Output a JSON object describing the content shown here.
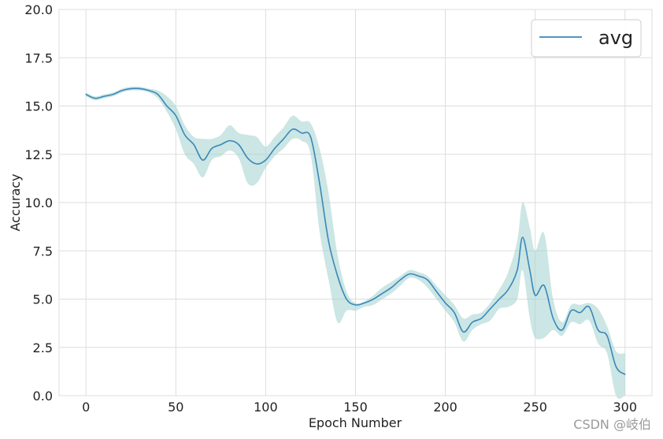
{
  "chart_data": {
    "type": "line",
    "xlabel": "Epoch Number",
    "ylabel": "Accuracy",
    "xlim": [
      -15,
      315
    ],
    "ylim": [
      0,
      20
    ],
    "xticks": [
      0,
      50,
      100,
      150,
      200,
      250,
      300
    ],
    "xtick_labels": [
      "0",
      "50",
      "100",
      "150",
      "200",
      "250",
      "300"
    ],
    "yticks": [
      0,
      2.5,
      5,
      7.5,
      10,
      12.5,
      15,
      17.5,
      20
    ],
    "ytick_labels": [
      "0.0",
      "2.5",
      "5.0",
      "7.5",
      "10.0",
      "12.5",
      "15.0",
      "17.5",
      "20.0"
    ],
    "grid": true,
    "legend_position": "top-right",
    "series": [
      {
        "name": "avg",
        "color": "#3a87b9",
        "band_color": "#a9d6d2",
        "x": [
          0,
          5,
          10,
          15,
          20,
          25,
          30,
          35,
          40,
          45,
          50,
          55,
          60,
          65,
          70,
          75,
          80,
          85,
          90,
          95,
          100,
          105,
          110,
          115,
          120,
          125,
          130,
          135,
          140,
          145,
          150,
          155,
          160,
          165,
          170,
          175,
          180,
          185,
          190,
          195,
          200,
          205,
          210,
          215,
          220,
          225,
          230,
          235,
          240,
          243,
          247,
          250,
          255,
          260,
          265,
          270,
          275,
          280,
          285,
          290,
          295,
          300
        ],
        "values": [
          15.6,
          15.4,
          15.5,
          15.6,
          15.8,
          15.9,
          15.9,
          15.8,
          15.6,
          15.0,
          14.5,
          13.5,
          13.0,
          12.2,
          12.8,
          13.0,
          13.2,
          13.0,
          12.3,
          12.0,
          12.2,
          12.8,
          13.3,
          13.8,
          13.6,
          13.4,
          11.0,
          8.0,
          6.2,
          5.0,
          4.7,
          4.8,
          5.0,
          5.3,
          5.6,
          6.0,
          6.3,
          6.2,
          6.0,
          5.4,
          4.8,
          4.3,
          3.3,
          3.8,
          4.0,
          4.5,
          5.0,
          5.5,
          6.5,
          8.2,
          6.5,
          5.2,
          5.7,
          4.0,
          3.4,
          4.4,
          4.3,
          4.6,
          3.4,
          3.1,
          1.5,
          1.1
        ],
        "lower": [
          15.5,
          15.3,
          15.4,
          15.5,
          15.7,
          15.8,
          15.8,
          15.7,
          15.4,
          14.7,
          13.8,
          12.5,
          12.0,
          11.3,
          12.2,
          12.4,
          12.7,
          12.3,
          11.0,
          11.0,
          11.8,
          12.4,
          12.8,
          13.3,
          13.2,
          12.5,
          8.5,
          6.0,
          3.8,
          4.4,
          4.4,
          4.6,
          4.7,
          5.0,
          5.3,
          5.7,
          6.1,
          6.0,
          5.6,
          5.0,
          4.4,
          3.8,
          2.8,
          3.4,
          3.7,
          3.9,
          4.5,
          4.6,
          5.0,
          6.5,
          4.0,
          3.0,
          3.0,
          3.4,
          3.1,
          3.8,
          3.7,
          3.9,
          2.7,
          2.2,
          0.0,
          0.0
        ],
        "upper": [
          15.7,
          15.5,
          15.6,
          15.7,
          15.9,
          16.0,
          16.0,
          15.9,
          15.8,
          15.5,
          15.0,
          14.0,
          13.4,
          13.3,
          13.3,
          13.5,
          14.0,
          13.6,
          13.5,
          13.4,
          12.9,
          13.4,
          13.9,
          14.5,
          14.2,
          14.1,
          12.8,
          10.5,
          7.3,
          5.4,
          4.8,
          4.9,
          5.2,
          5.6,
          5.9,
          6.2,
          6.5,
          6.4,
          6.2,
          5.7,
          5.2,
          4.7,
          4.0,
          4.2,
          4.3,
          4.8,
          5.5,
          6.4,
          8.0,
          10.0,
          8.7,
          7.5,
          8.4,
          5.0,
          3.8,
          4.7,
          4.7,
          4.8,
          4.5,
          3.6,
          2.3,
          2.2
        ]
      }
    ]
  },
  "legend": {
    "label": "avg"
  },
  "watermark": {
    "text": "CSDN @岐伯"
  }
}
